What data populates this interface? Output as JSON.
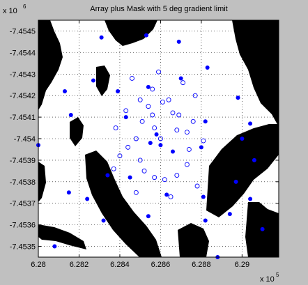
{
  "chart_data": {
    "type": "scatter",
    "title": "Array plus Mask with 5 deg gradient limit",
    "xlabel": "",
    "ylabel": "",
    "x_multiplier": "x 10",
    "x_exponent": "5",
    "y_multiplier": "x 10",
    "y_exponent": "6",
    "xlim": [
      6.28,
      6.2918
    ],
    "ylim": [
      -7.45345,
      -7.45455
    ],
    "x_ticks": [
      6.28,
      6.282,
      6.284,
      6.286,
      6.288,
      6.29
    ],
    "x_tick_labels": [
      "6.28",
      "6.282",
      "6.284",
      "6.286",
      "6.288",
      "6.29"
    ],
    "y_ticks": [
      -7.4545,
      -7.4544,
      -7.4543,
      -7.4542,
      -7.4541,
      -7.454,
      -7.4539,
      -7.4538,
      -7.4537,
      -7.4536,
      -7.4535
    ],
    "y_tick_labels": [
      "-7.4545",
      "-7.4544",
      "-7.4543",
      "-7.4542",
      "-7.4541",
      "-7.454",
      "-7.4539",
      "-7.4538",
      "-7.4537",
      "-7.4536",
      "-7.4535"
    ],
    "grid": true,
    "background_colors": {
      "unmasked": "#ffffff",
      "masked": "#000000"
    },
    "marker_color": "#0000ff",
    "series": [
      {
        "marker": "filled-dot",
        "points": [
          [
            6.2827,
            -7.45427
          ],
          [
            6.2813,
            -7.45422
          ],
          [
            6.2839,
            -7.45422
          ],
          [
            6.2854,
            -7.45424
          ],
          [
            6.2831,
            -7.45447
          ],
          [
            6.2843,
            -7.4541
          ],
          [
            6.2853,
            -7.45448
          ],
          [
            6.2869,
            -7.45445
          ],
          [
            6.2883,
            -7.45433
          ],
          [
            6.287,
            -7.45428
          ],
          [
            6.2898,
            -7.45419
          ],
          [
            6.2904,
            -7.45407
          ],
          [
            6.29,
            -7.454
          ],
          [
            6.2906,
            -7.4539
          ],
          [
            6.2882,
            -7.45408
          ],
          [
            6.288,
            -7.45396
          ],
          [
            6.2866,
            -7.45394
          ],
          [
            6.2855,
            -7.45398
          ],
          [
            6.286,
            -7.45397
          ],
          [
            6.2858,
            -7.45402
          ],
          [
            6.2816,
            -7.45411
          ],
          [
            6.28,
            -7.45397
          ],
          [
            6.2834,
            -7.45383
          ],
          [
            6.2845,
            -7.45382
          ],
          [
            6.2815,
            -7.45375
          ],
          [
            6.2824,
            -7.45372
          ],
          [
            6.2863,
            -7.45374
          ],
          [
            6.2881,
            -7.45373
          ],
          [
            6.2897,
            -7.4538
          ],
          [
            6.2904,
            -7.45372
          ],
          [
            6.2832,
            -7.45362
          ],
          [
            6.2854,
            -7.45364
          ],
          [
            6.2882,
            -7.45362
          ],
          [
            6.2894,
            -7.45365
          ],
          [
            6.291,
            -7.45358
          ],
          [
            6.2808,
            -7.4535
          ],
          [
            6.2888,
            -7.45345
          ]
        ]
      },
      {
        "marker": "open-circle",
        "points": [
          [
            6.286,
            -7.454
          ],
          [
            6.2857,
            -7.45405
          ],
          [
            6.2856,
            -7.45411
          ],
          [
            6.285,
            -7.45418
          ],
          [
            6.2861,
            -7.45417
          ],
          [
            6.2866,
            -7.45412
          ],
          [
            6.2868,
            -7.45404
          ],
          [
            6.2854,
            -7.45415
          ],
          [
            6.2851,
            -7.45408
          ],
          [
            6.2848,
            -7.454
          ],
          [
            6.285,
            -7.4539
          ],
          [
            6.2852,
            -7.45385
          ],
          [
            6.2857,
            -7.45382
          ],
          [
            6.2862,
            -7.45381
          ],
          [
            6.2868,
            -7.45383
          ],
          [
            6.2873,
            -7.45388
          ],
          [
            6.2874,
            -7.45395
          ],
          [
            6.2873,
            -7.45403
          ],
          [
            6.2869,
            -7.45411
          ],
          [
            6.2864,
            -7.45418
          ],
          [
            6.2856,
            -7.45423
          ],
          [
            6.2843,
            -7.45413
          ],
          [
            6.2844,
            -7.45396
          ],
          [
            6.2877,
            -7.4542
          ],
          [
            6.2881,
            -7.45399
          ],
          [
            6.2878,
            -7.45378
          ],
          [
            6.2848,
            -7.45375
          ],
          [
            6.284,
            -7.45392
          ],
          [
            6.2865,
            -7.45373
          ],
          [
            6.2859,
            -7.45431
          ],
          [
            6.2871,
            -7.45426
          ],
          [
            6.2846,
            -7.45428
          ],
          [
            6.2838,
            -7.45405
          ],
          [
            6.2837,
            -7.45386
          ],
          [
            6.2876,
            -7.45408
          ]
        ]
      }
    ]
  }
}
